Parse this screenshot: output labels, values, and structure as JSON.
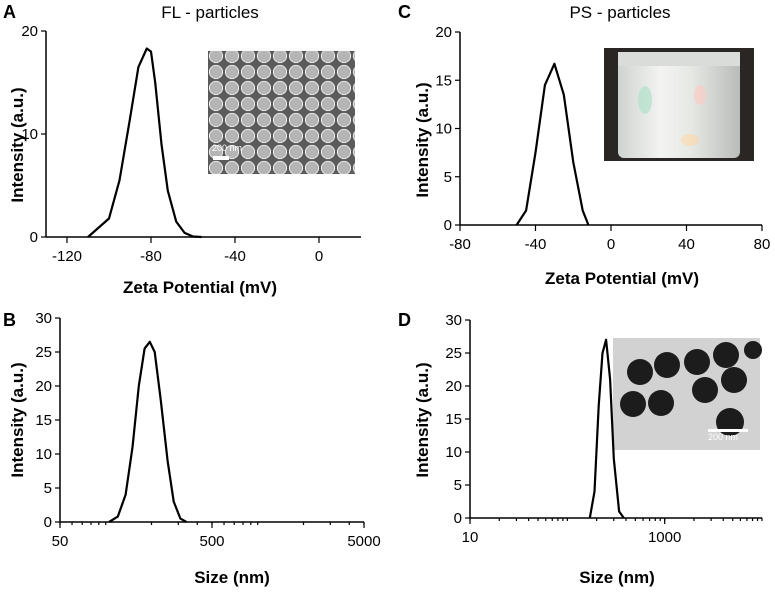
{
  "chart_data": [
    {
      "id": "A",
      "panel_label": "A",
      "type": "line",
      "title": "FL - particles",
      "xlabel": "Zeta Potential (mV)",
      "ylabel": "Intensity (a.u.)",
      "xlim": [
        -130,
        20
      ],
      "ylim": [
        0,
        20
      ],
      "xscale": "linear",
      "xticks": [
        -120,
        -80,
        -40,
        0
      ],
      "yticks": [
        0,
        10,
        20
      ],
      "x": [
        -110,
        -100,
        -95,
        -90,
        -86,
        -82,
        -80,
        -78,
        -75,
        -72,
        -68,
        -64,
        -60,
        -56
      ],
      "y": [
        0,
        1.8,
        5.5,
        11.5,
        16.5,
        18.3,
        18.0,
        15.0,
        9.0,
        4.5,
        1.5,
        0.4,
        0.05,
        0
      ],
      "inset": {
        "type": "sem-image",
        "scale_bar": "200 nm"
      }
    },
    {
      "id": "C",
      "panel_label": "C",
      "type": "line",
      "title": "PS - particles",
      "xlabel": "Zeta Potential (mV)",
      "ylabel": "Intensity (a.u.)",
      "xlim": [
        -80,
        80
      ],
      "ylim": [
        0,
        20
      ],
      "xscale": "linear",
      "xticks": [
        -80,
        -40,
        0,
        40,
        80
      ],
      "yticks": [
        0,
        5,
        10,
        15,
        20
      ],
      "x": [
        -50,
        -45,
        -40,
        -35,
        -30,
        -25,
        -20,
        -15,
        -12
      ],
      "y": [
        0,
        1.5,
        7.5,
        14.5,
        16.7,
        13.5,
        6.5,
        1.5,
        0
      ],
      "inset": {
        "type": "photo",
        "description_hidden": true
      }
    },
    {
      "id": "B",
      "panel_label": "B",
      "type": "line",
      "title": "",
      "xlabel": "Size (nm)",
      "ylabel": "Intensity (a.u.)",
      "xlim": [
        50,
        5000
      ],
      "ylim": [
        0,
        30
      ],
      "xscale": "log",
      "xticks": [
        50,
        500,
        5000
      ],
      "yticks": [
        0,
        5,
        10,
        15,
        20,
        25,
        30
      ],
      "x": [
        105,
        120,
        135,
        150,
        165,
        180,
        195,
        210,
        230,
        255,
        280,
        310,
        340
      ],
      "y": [
        0,
        0.8,
        4,
        11,
        20,
        25.5,
        26.5,
        25,
        18,
        9,
        3,
        0.5,
        0
      ]
    },
    {
      "id": "D",
      "panel_label": "D",
      "type": "line",
      "title": "",
      "xlabel": "Size (nm)",
      "ylabel": "Intensity (a.u.)",
      "xlim": [
        10,
        10000
      ],
      "ylim": [
        0,
        30
      ],
      "xscale": "log",
      "xticks": [
        10,
        1000
      ],
      "yticks": [
        0,
        5,
        10,
        15,
        20,
        25,
        30
      ],
      "x": [
        170,
        190,
        210,
        230,
        250,
        275,
        300,
        340,
        380
      ],
      "y": [
        0,
        4,
        17,
        25,
        27,
        21,
        9,
        1,
        0
      ],
      "inset": {
        "type": "tem-image",
        "scale_bar": "200 nm"
      }
    }
  ]
}
